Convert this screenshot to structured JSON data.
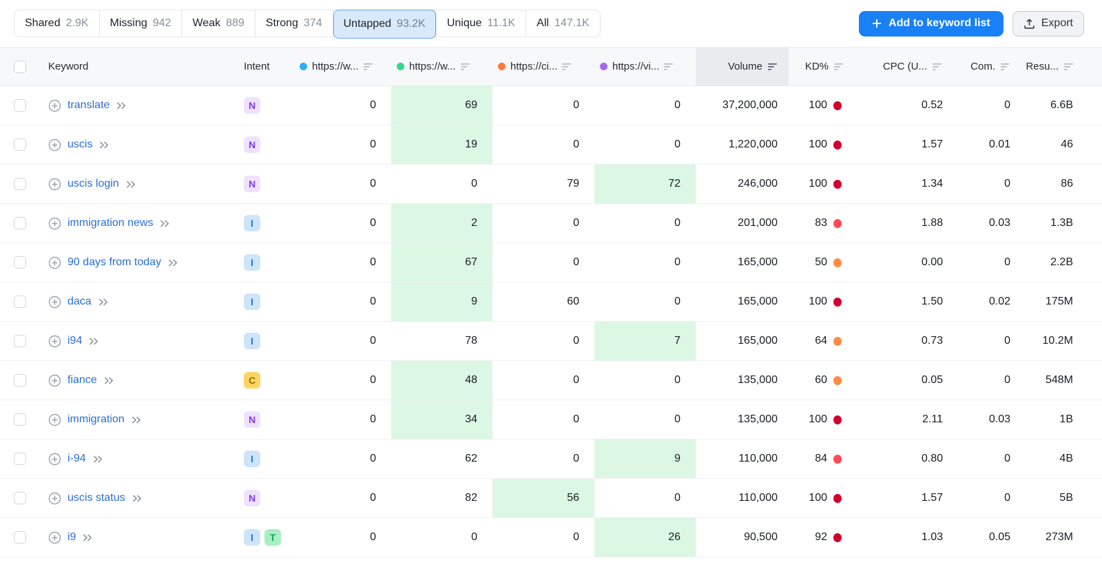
{
  "filter_tabs": [
    {
      "label": "Shared",
      "count": "2.9K",
      "selected": false
    },
    {
      "label": "Missing",
      "count": "942",
      "selected": false
    },
    {
      "label": "Weak",
      "count": "889",
      "selected": false
    },
    {
      "label": "Strong",
      "count": "374",
      "selected": false
    },
    {
      "label": "Untapped",
      "count": "93.2K",
      "selected": true
    },
    {
      "label": "Unique",
      "count": "11.1K",
      "selected": false
    },
    {
      "label": "All",
      "count": "147.1K",
      "selected": false
    }
  ],
  "actions": {
    "add_button": "Add to keyword list",
    "export_button": "Export"
  },
  "table": {
    "columns": [
      {
        "id": "keyword",
        "label": "Keyword"
      },
      {
        "id": "intent",
        "label": "Intent"
      },
      {
        "id": "competitor-1",
        "label": "https://w...",
        "dot_color": "#29b0f2"
      },
      {
        "id": "competitor-2",
        "label": "https://w...",
        "dot_color": "#33d68c"
      },
      {
        "id": "competitor-3",
        "label": "https://ci...",
        "dot_color": "#ff7a38"
      },
      {
        "id": "competitor-4",
        "label": "https://vi...",
        "dot_color": "#a868f5"
      },
      {
        "id": "volume",
        "label": "Volume",
        "sorted": true
      },
      {
        "id": "kd",
        "label": "KD%"
      },
      {
        "id": "cpc",
        "label": "CPC (U..."
      },
      {
        "id": "com",
        "label": "Com."
      },
      {
        "id": "results",
        "label": "Resu..."
      }
    ],
    "intent_styles": {
      "N": {
        "bg": "#eee2fd",
        "fg": "#7f3fe3"
      },
      "I": {
        "bg": "#cde4fb",
        "fg": "#2273cc"
      },
      "C": {
        "bg": "#fcd461",
        "fg": "#9c6902"
      },
      "T": {
        "bg": "#a9efc4",
        "fg": "#12a457"
      }
    },
    "rows": [
      {
        "keyword": "translate",
        "intents": [
          "N"
        ],
        "urls": [
          {
            "v": "0",
            "hl": false
          },
          {
            "v": "69",
            "hl": true
          },
          {
            "v": "0",
            "hl": false
          },
          {
            "v": "0",
            "hl": false
          }
        ],
        "volume": "37,200,000",
        "kd": "100",
        "kd_dot": "#d1002f",
        "cpc": "0.52",
        "com": "0",
        "results": "6.6B"
      },
      {
        "keyword": "uscis",
        "intents": [
          "N"
        ],
        "urls": [
          {
            "v": "0",
            "hl": false
          },
          {
            "v": "19",
            "hl": true
          },
          {
            "v": "0",
            "hl": false
          },
          {
            "v": "0",
            "hl": false
          }
        ],
        "volume": "1,220,000",
        "kd": "100",
        "kd_dot": "#d1002f",
        "cpc": "1.57",
        "com": "0.01",
        "results": "46"
      },
      {
        "keyword": "uscis login",
        "intents": [
          "N"
        ],
        "urls": [
          {
            "v": "0",
            "hl": false
          },
          {
            "v": "0",
            "hl": false
          },
          {
            "v": "79",
            "hl": false
          },
          {
            "v": "72",
            "hl": true
          }
        ],
        "volume": "246,000",
        "kd": "100",
        "kd_dot": "#d1002f",
        "cpc": "1.34",
        "com": "0",
        "results": "86"
      },
      {
        "keyword": "immigration news",
        "intents": [
          "I"
        ],
        "urls": [
          {
            "v": "0",
            "hl": false
          },
          {
            "v": "2",
            "hl": true
          },
          {
            "v": "0",
            "hl": false
          },
          {
            "v": "0",
            "hl": false
          }
        ],
        "volume": "201,000",
        "kd": "83",
        "kd_dot": "#ff4953",
        "cpc": "1.88",
        "com": "0.03",
        "results": "1.3B"
      },
      {
        "keyword": "90 days from today",
        "intents": [
          "I"
        ],
        "urls": [
          {
            "v": "0",
            "hl": false
          },
          {
            "v": "67",
            "hl": true
          },
          {
            "v": "0",
            "hl": false
          },
          {
            "v": "0",
            "hl": false
          }
        ],
        "volume": "165,000",
        "kd": "50",
        "kd_dot": "#ff8c43",
        "cpc": "0.00",
        "com": "0",
        "results": "2.2B"
      },
      {
        "keyword": "daca",
        "intents": [
          "I"
        ],
        "urls": [
          {
            "v": "0",
            "hl": false
          },
          {
            "v": "9",
            "hl": true
          },
          {
            "v": "60",
            "hl": false
          },
          {
            "v": "0",
            "hl": false
          }
        ],
        "volume": "165,000",
        "kd": "100",
        "kd_dot": "#d1002f",
        "cpc": "1.50",
        "com": "0.02",
        "results": "175M"
      },
      {
        "keyword": "i94",
        "intents": [
          "I"
        ],
        "urls": [
          {
            "v": "0",
            "hl": false
          },
          {
            "v": "78",
            "hl": false
          },
          {
            "v": "0",
            "hl": false
          },
          {
            "v": "7",
            "hl": true
          }
        ],
        "volume": "165,000",
        "kd": "64",
        "kd_dot": "#ff8c43",
        "cpc": "0.73",
        "com": "0",
        "results": "10.2M"
      },
      {
        "keyword": "fiance",
        "intents": [
          "C"
        ],
        "urls": [
          {
            "v": "0",
            "hl": false
          },
          {
            "v": "48",
            "hl": true
          },
          {
            "v": "0",
            "hl": false
          },
          {
            "v": "0",
            "hl": false
          }
        ],
        "volume": "135,000",
        "kd": "60",
        "kd_dot": "#ff8c43",
        "cpc": "0.05",
        "com": "0",
        "results": "548M"
      },
      {
        "keyword": "immigration",
        "intents": [
          "N"
        ],
        "urls": [
          {
            "v": "0",
            "hl": false
          },
          {
            "v": "34",
            "hl": true
          },
          {
            "v": "0",
            "hl": false
          },
          {
            "v": "0",
            "hl": false
          }
        ],
        "volume": "135,000",
        "kd": "100",
        "kd_dot": "#d1002f",
        "cpc": "2.11",
        "com": "0.03",
        "results": "1B"
      },
      {
        "keyword": "i-94",
        "intents": [
          "I"
        ],
        "urls": [
          {
            "v": "0",
            "hl": false
          },
          {
            "v": "62",
            "hl": false
          },
          {
            "v": "0",
            "hl": false
          },
          {
            "v": "9",
            "hl": true
          }
        ],
        "volume": "110,000",
        "kd": "84",
        "kd_dot": "#ff4953",
        "cpc": "0.80",
        "com": "0",
        "results": "4B"
      },
      {
        "keyword": "uscis status",
        "intents": [
          "N"
        ],
        "urls": [
          {
            "v": "0",
            "hl": false
          },
          {
            "v": "82",
            "hl": false
          },
          {
            "v": "56",
            "hl": true
          },
          {
            "v": "0",
            "hl": false
          }
        ],
        "volume": "110,000",
        "kd": "100",
        "kd_dot": "#d1002f",
        "cpc": "1.57",
        "com": "0",
        "results": "5B"
      },
      {
        "keyword": "i9",
        "intents": [
          "I",
          "T"
        ],
        "urls": [
          {
            "v": "0",
            "hl": false
          },
          {
            "v": "0",
            "hl": false
          },
          {
            "v": "0",
            "hl": false
          },
          {
            "v": "26",
            "hl": true
          }
        ],
        "volume": "90,500",
        "kd": "92",
        "kd_dot": "#d1002f",
        "cpc": "1.03",
        "com": "0.05",
        "results": "273M"
      }
    ]
  },
  "colors": {
    "primary_button": "#1a80f6",
    "selected_tab_bg": "#d8e9fc",
    "selected_tab_border": "#66a3e8",
    "highlight_cell": "#dcf7e3",
    "kd_very_hard": "#d1002f",
    "kd_hard": "#ff4953",
    "kd_possible": "#ff8c43"
  }
}
